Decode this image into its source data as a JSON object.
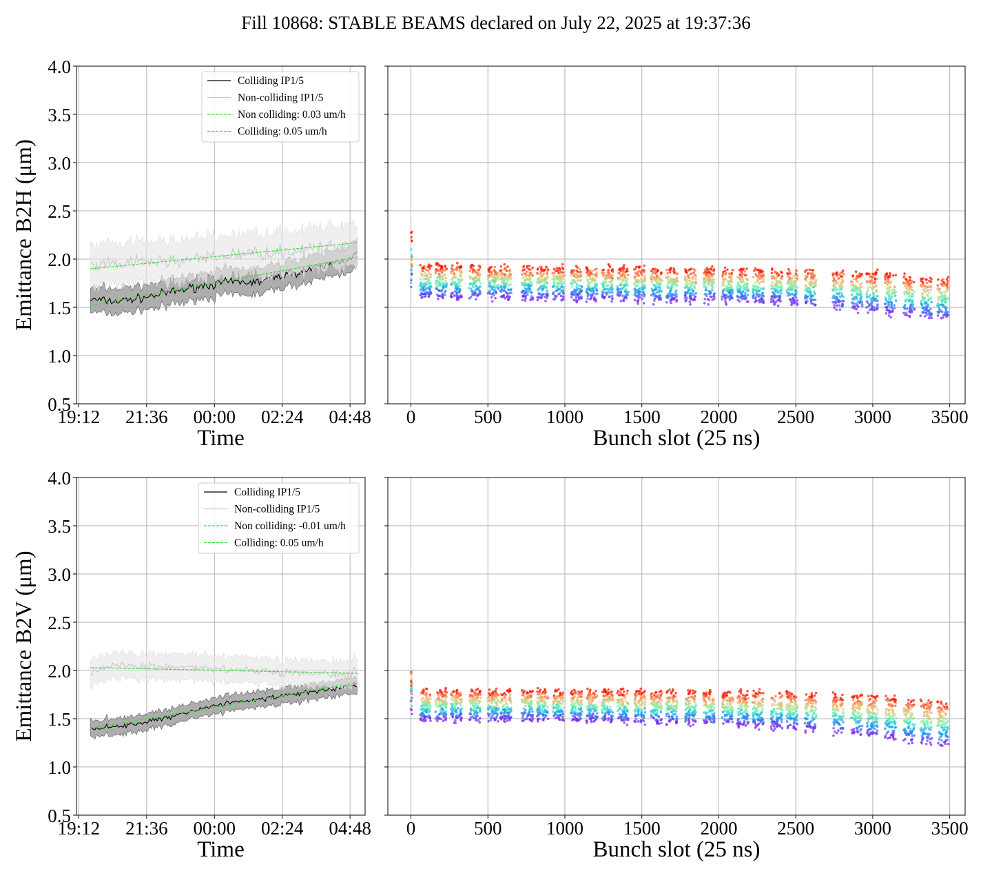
{
  "title": "Fill 10868: STABLE BEAMS declared on July 22, 2025 at 19:37:36",
  "colors": {
    "colliding": "#000000",
    "non_colliding": "#c8c8c8",
    "fit": "#33dd33",
    "grid": "#b0b0b0",
    "band_colliding": "#a0a0a0",
    "band_non_colliding": "#e6e6e6"
  },
  "chart_data": [
    {
      "type": "line",
      "ylabel": "Emittance B2H (μm)",
      "xlabel": "Time",
      "ylim": [
        0.5,
        4.0
      ],
      "yticks": [
        "0.5",
        "1.0",
        "1.5",
        "2.0",
        "2.5",
        "3.0",
        "3.5",
        "4.0"
      ],
      "xticks": [
        "19:12",
        "21:36",
        "00:00",
        "02:24",
        "04:48"
      ],
      "xlim_hours": [
        "19:07",
        "05:20"
      ],
      "grid": true,
      "legend_position": "top-right",
      "legend": [
        "Colliding IP1/5",
        "Non-colliding IP1/5",
        "Non colliding: 0.03 um/h",
        "Colliding: 0.05 um/h"
      ],
      "series": [
        {
          "name": "Colliding IP1/5",
          "x": [
            "19:37",
            "20:30",
            "21:30",
            "22:30",
            "23:30",
            "00:30",
            "01:30",
            "02:30",
            "03:30",
            "04:30",
            "05:03"
          ],
          "y": [
            1.58,
            1.56,
            1.6,
            1.66,
            1.72,
            1.76,
            1.76,
            1.84,
            1.9,
            1.98,
            2.05
          ],
          "band": 0.12
        },
        {
          "name": "Non-colliding IP1/5",
          "x": [
            "19:37",
            "20:30",
            "21:30",
            "22:30",
            "23:30",
            "00:30",
            "01:30",
            "02:30",
            "03:30",
            "04:30",
            "05:03"
          ],
          "y": [
            1.92,
            1.94,
            1.97,
            1.98,
            2.0,
            2.04,
            2.06,
            2.08,
            2.1,
            2.14,
            2.18
          ],
          "band": 0.2
        },
        {
          "name": "Non colliding: 0.03 um/h",
          "fit": true,
          "x": [
            "19:37",
            "05:03"
          ],
          "y": [
            1.9,
            2.17
          ]
        },
        {
          "name": "Colliding: 0.05 um/h",
          "fit": true,
          "x": [
            "19:37",
            "05:03"
          ],
          "y": [
            1.52,
            2.02
          ]
        }
      ]
    },
    {
      "type": "scatter",
      "xlabel": "Bunch slot (25 ns)",
      "ylim": [
        0.5,
        4.0
      ],
      "xlim": [
        -150,
        3600
      ],
      "xticks": [
        "0",
        "500",
        "1000",
        "1500",
        "2000",
        "2500",
        "3000",
        "3500"
      ],
      "grid": true,
      "trains": [
        0,
        60,
        160,
        260,
        380,
        500,
        580,
        720,
        820,
        920,
        1040,
        1140,
        1240,
        1340,
        1450,
        1560,
        1660,
        1780,
        1900,
        2020,
        2120,
        2220,
        2340,
        2440,
        2560,
        2740,
        2860,
        2960,
        3080,
        3200,
        3310,
        3420
      ],
      "level_high": [
        1.92,
        1.9,
        1.88,
        1.86,
        1.84,
        1.78
      ],
      "level_low": [
        1.62,
        1.6,
        1.58,
        1.56,
        1.48,
        1.4
      ],
      "level_x": [
        0,
        1000,
        2000,
        2500,
        3000,
        3420
      ],
      "spread": 0.06
    },
    {
      "type": "line",
      "ylabel": "Emittance B2V (μm)",
      "xlabel": "Time",
      "ylim": [
        0.5,
        4.0
      ],
      "yticks": [
        "0.5",
        "1.0",
        "1.5",
        "2.0",
        "2.5",
        "3.0",
        "3.5",
        "4.0"
      ],
      "xticks": [
        "19:12",
        "21:36",
        "00:00",
        "02:24",
        "04:48"
      ],
      "xlim_hours": [
        "19:07",
        "05:20"
      ],
      "grid": true,
      "legend_position": "top-right",
      "legend": [
        "Colliding IP1/5",
        "Non-colliding IP1/5",
        "Non colliding: -0.01 um/h",
        "Colliding: 0.05 um/h"
      ],
      "series": [
        {
          "name": "Colliding IP1/5",
          "x": [
            "19:37",
            "20:30",
            "21:30",
            "22:30",
            "23:30",
            "00:30",
            "01:30",
            "02:30",
            "03:30",
            "04:30",
            "05:03"
          ],
          "y": [
            1.4,
            1.42,
            1.46,
            1.52,
            1.6,
            1.66,
            1.7,
            1.74,
            1.78,
            1.82,
            1.84
          ],
          "band": 0.07
        },
        {
          "name": "Non-colliding IP1/5",
          "x": [
            "19:37",
            "20:30",
            "21:30",
            "22:30",
            "23:30",
            "00:30",
            "01:30",
            "02:30",
            "03:30",
            "04:30",
            "05:03"
          ],
          "y": [
            1.96,
            2.06,
            2.05,
            2.04,
            2.03,
            2.02,
            2.0,
            1.98,
            1.98,
            1.97,
            1.98
          ],
          "band": 0.12
        },
        {
          "name": "Non colliding: -0.01 um/h",
          "fit": true,
          "x": [
            "19:37",
            "05:03"
          ],
          "y": [
            2.03,
            1.97
          ]
        },
        {
          "name": "Colliding: 0.05 um/h",
          "fit": true,
          "x": [
            "19:37",
            "05:03"
          ],
          "y": [
            1.4,
            1.87
          ]
        }
      ]
    },
    {
      "type": "scatter",
      "xlabel": "Bunch slot (25 ns)",
      "ylim": [
        0.5,
        4.0
      ],
      "xlim": [
        -150,
        3600
      ],
      "xticks": [
        "0",
        "500",
        "1000",
        "1500",
        "2000",
        "2500",
        "3000",
        "3500"
      ],
      "grid": true,
      "trains": [
        0,
        60,
        160,
        260,
        380,
        500,
        580,
        720,
        820,
        920,
        1040,
        1140,
        1240,
        1340,
        1450,
        1560,
        1660,
        1780,
        1900,
        2020,
        2120,
        2220,
        2340,
        2440,
        2560,
        2740,
        2860,
        2960,
        3080,
        3200,
        3310,
        3420
      ],
      "level_high": [
        1.78,
        1.78,
        1.76,
        1.75,
        1.72,
        1.66
      ],
      "level_low": [
        1.5,
        1.5,
        1.46,
        1.42,
        1.34,
        1.24
      ],
      "level_x": [
        0,
        1000,
        2000,
        2500,
        3000,
        3420
      ],
      "spread": 0.05
    }
  ]
}
